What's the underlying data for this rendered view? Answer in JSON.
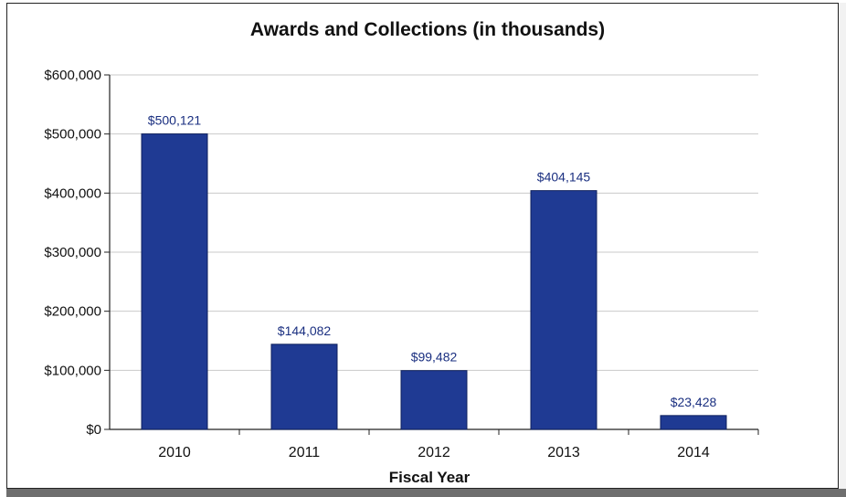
{
  "chart_data": {
    "type": "bar",
    "title": "Awards and Collections (in thousands)",
    "xlabel": "Fiscal Year",
    "ylabel": "",
    "categories": [
      "2010",
      "2011",
      "2012",
      "2013",
      "2014"
    ],
    "values": [
      500121,
      144082,
      99482,
      404145,
      23428
    ],
    "data_labels": [
      "$500,121",
      "$144,082",
      "$99,482",
      "$404,145",
      "$23,428"
    ],
    "ylim": [
      0,
      600000
    ],
    "yticks": [
      0,
      100000,
      200000,
      300000,
      400000,
      500000,
      600000
    ],
    "ytick_labels": [
      "$0",
      "$100,000",
      "$200,000",
      "$300,000",
      "$400,000",
      "$500,000",
      "$600,000"
    ],
    "grid": true,
    "legend": false,
    "bar_color": "#1f3a93",
    "label_color": "#1a2f80"
  }
}
